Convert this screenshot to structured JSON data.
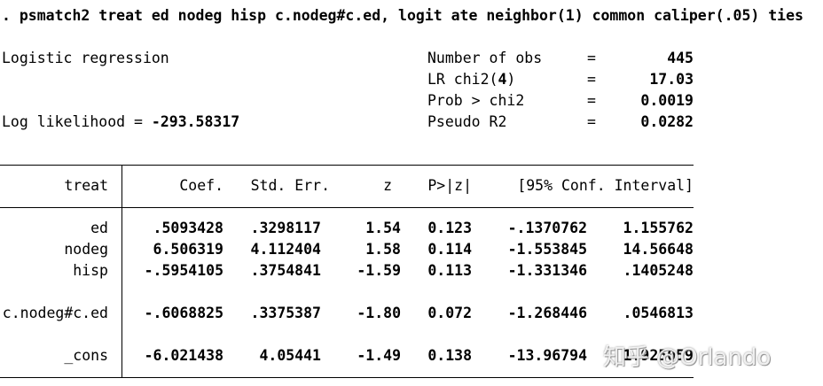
{
  "command": ". psmatch2 treat ed nodeg hisp c.nodeg#c.ed, logit ate neighbor(1) common caliper(.05) ties",
  "header": {
    "model": "Logistic regression",
    "loglik_label": "Log likelihood = ",
    "loglik_value": "-293.58317",
    "eq": "=",
    "stats": [
      {
        "label": "Number of obs",
        "value": "445"
      },
      {
        "label_pre": "LR chi2(",
        "label_num": "4",
        "label_post": ")",
        "value": "17.03"
      },
      {
        "label": "Prob > chi2",
        "value": "0.0019"
      },
      {
        "label": "Pseudo R2",
        "value": "0.0282"
      }
    ]
  },
  "table": {
    "depvar": "treat",
    "columns": [
      "Coef.",
      "Std. Err.",
      "z",
      "P>|z|",
      "[95% Conf. Interval]"
    ],
    "rows": [
      {
        "var": "ed",
        "coef": ".5093428",
        "se": ".3298117",
        "z": "1.54",
        "p": "0.123",
        "lo": "-.1370762",
        "hi": "1.155762"
      },
      {
        "var": "nodeg",
        "coef": "6.506319",
        "se": "4.112404",
        "z": "1.58",
        "p": "0.114",
        "lo": "-1.553845",
        "hi": "14.56648"
      },
      {
        "var": "hisp",
        "coef": "-.5954105",
        "se": ".3754841",
        "z": "-1.59",
        "p": "0.113",
        "lo": "-1.331346",
        "hi": ".1405248"
      },
      {
        "var": "c.nodeg#c.ed",
        "coef": "-.6068825",
        "se": ".3375387",
        "z": "-1.80",
        "p": "0.072",
        "lo": "-1.268446",
        "hi": ".0546813"
      },
      {
        "var": "_cons",
        "coef": "-6.021438",
        "se": "4.05441",
        "z": "-1.49",
        "p": "0.138",
        "lo": "-13.96794",
        "hi": "1.925059"
      }
    ]
  },
  "watermark": "知乎 @Orlando"
}
